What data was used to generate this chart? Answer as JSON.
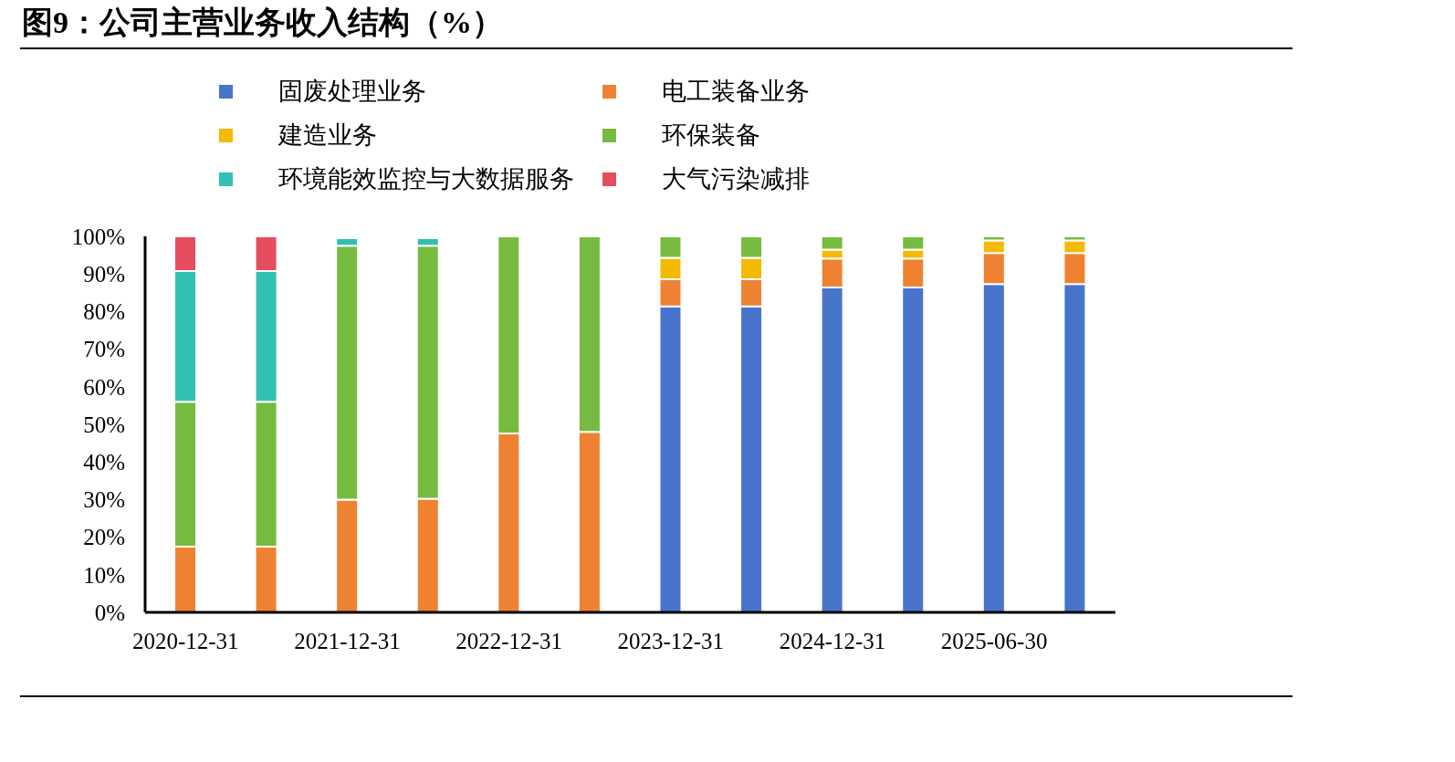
{
  "chart_data": {
    "type": "bar",
    "title": "图9：公司主营业务收入结构（%）",
    "stacked": true,
    "legend": "top",
    "categories": [
      "2020-12-31",
      null,
      "2021-12-31",
      null,
      "2022-12-31",
      null,
      "2023-12-31",
      null,
      "2024-12-31",
      null,
      "2025-06-30",
      null
    ],
    "ylim": [
      0,
      100
    ],
    "yticks": [
      {
        "value": 0,
        "label": "0%"
      },
      {
        "value": 10,
        "label": "10%"
      },
      {
        "value": 20,
        "label": "20%"
      },
      {
        "value": 30,
        "label": "30%"
      },
      {
        "value": 40,
        "label": "40%"
      },
      {
        "value": 50,
        "label": "50%"
      },
      {
        "value": 60,
        "label": "60%"
      },
      {
        "value": 70,
        "label": "70%"
      },
      {
        "value": 80,
        "label": "80%"
      },
      {
        "value": 90,
        "label": "90%"
      },
      {
        "value": 100,
        "label": "100%"
      }
    ],
    "series": [
      {
        "name": "固废处理业务",
        "color": "#4874cb",
        "values": [
          0,
          0,
          0,
          0,
          0,
          0,
          81.4,
          81.4,
          86.4,
          86.4,
          87.3,
          87.3
        ]
      },
      {
        "name": "电工装备业务",
        "color": "#ee8232",
        "values": [
          17.5,
          17.5,
          30,
          30.2,
          47.6,
          48,
          7.2,
          7.2,
          7.7,
          7.7,
          8.3,
          8.3
        ]
      },
      {
        "name": "建造业务",
        "color": "#f2ba02",
        "values": [
          0,
          0,
          0,
          0,
          0,
          0,
          5.7,
          5.7,
          2.4,
          2.4,
          3.3,
          3.3
        ]
      },
      {
        "name": "环保装备",
        "color": "#76bb40",
        "values": [
          38.5,
          38.5,
          67.5,
          67.3,
          52.4,
          52,
          5.7,
          5.7,
          3.5,
          3.5,
          1.1,
          1.1
        ]
      },
      {
        "name": "环境能效监控与大数据服务",
        "color": "#32c0b3",
        "values": [
          34.8,
          34.8,
          2,
          2,
          0,
          0,
          0,
          0,
          0,
          0,
          0,
          0
        ]
      },
      {
        "name": "大气污染减排",
        "color": "#e54c5e",
        "values": [
          9.2,
          9.2,
          0,
          0,
          0,
          0,
          0,
          0,
          0,
          0,
          0,
          0
        ]
      }
    ]
  }
}
